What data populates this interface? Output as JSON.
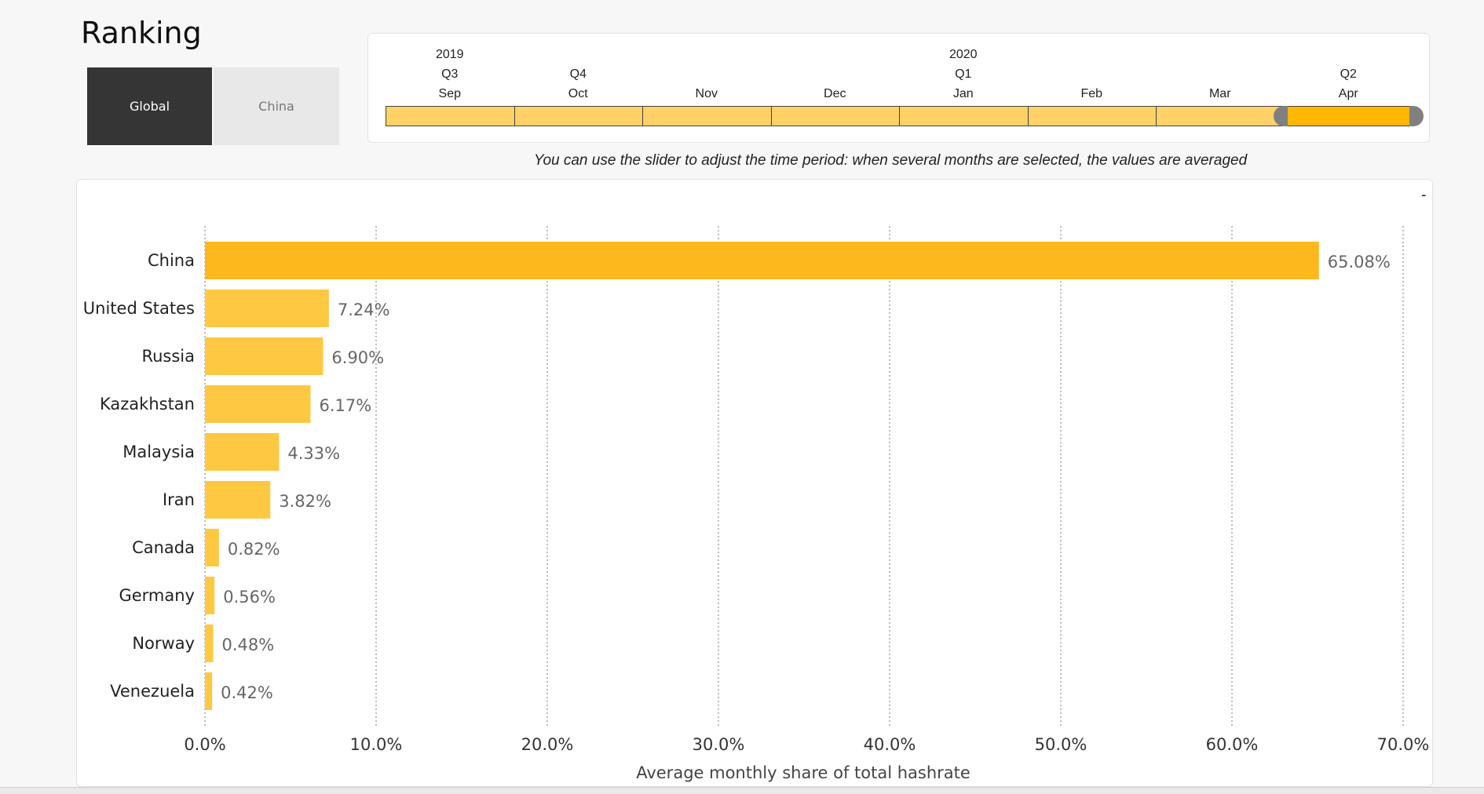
{
  "page": {
    "title": "Ranking"
  },
  "toggle": {
    "global_label": "Global",
    "china_label": "China",
    "active": "Global"
  },
  "timeline": {
    "years": [
      "2019",
      "2020"
    ],
    "quarters": [
      "Q3",
      "Q4",
      "Q1",
      "Q2"
    ],
    "months": [
      "Sep",
      "Oct",
      "Nov",
      "Dec",
      "Jan",
      "Feb",
      "Mar",
      "Apr"
    ],
    "selected_month": "Apr",
    "hint": "You can use the slider to adjust the time period: when several months are selected, the values are averaged"
  },
  "panel": {
    "collapse_label": "-"
  },
  "colors": {
    "china_bar": "#fdb81e",
    "other_bars": "#ffc843",
    "timeline_cell": "#ffd166",
    "timeline_selected": "#ffb700"
  },
  "chart_data": {
    "type": "bar",
    "orientation": "horizontal",
    "categories": [
      "China",
      "United States",
      "Russia",
      "Kazakhstan",
      "Malaysia",
      "Iran",
      "Canada",
      "Germany",
      "Norway",
      "Venezuela"
    ],
    "values": [
      65.08,
      7.24,
      6.9,
      6.17,
      4.33,
      3.82,
      0.82,
      0.56,
      0.48,
      0.42
    ],
    "value_labels": [
      "65.08%",
      "7.24%",
      "6.90%",
      "6.17%",
      "4.33%",
      "3.82%",
      "0.82%",
      "0.56%",
      "0.48%",
      "0.42%"
    ],
    "xlabel": "Average monthly share of total hashrate",
    "ylabel": "",
    "xlim": [
      0,
      70
    ],
    "xticks": [
      0,
      10,
      20,
      30,
      40,
      50,
      60,
      70
    ],
    "xtick_labels": [
      "0.0%",
      "10.0%",
      "20.0%",
      "30.0%",
      "40.0%",
      "50.0%",
      "60.0%",
      "70.0%"
    ],
    "grid": "vertical-dashed",
    "legend": "none"
  }
}
